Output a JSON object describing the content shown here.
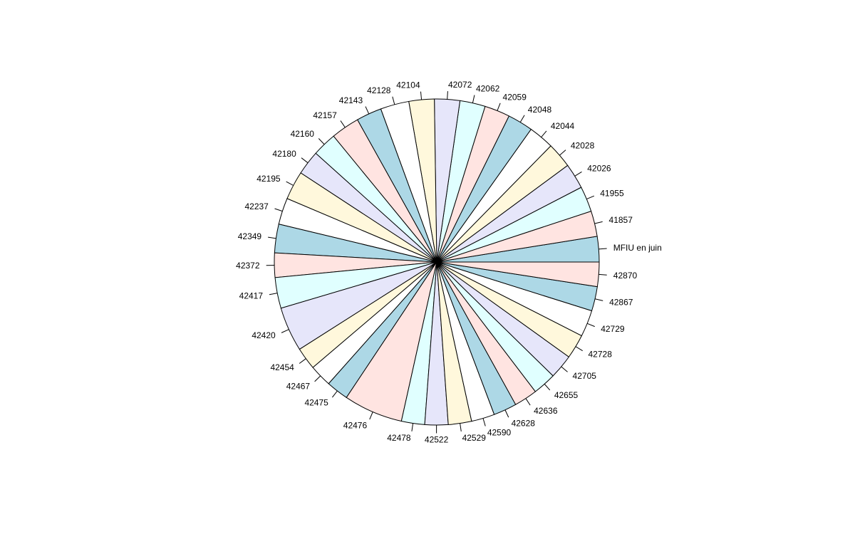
{
  "chart_data": {
    "type": "pie",
    "title": "",
    "start_angle_deg": 0,
    "direction": "counterclockwise",
    "palette": [
      "#add8e6",
      "#ffe4e1",
      "#e0ffff",
      "#e6e6fa",
      "#fff8dc",
      "#ffffff"
    ],
    "slices": [
      {
        "label": "MFIU en juin",
        "value": 2.4
      },
      {
        "label": "41857",
        "value": 2.4
      },
      {
        "label": "41955",
        "value": 2.4
      },
      {
        "label": "42026",
        "value": 2.4
      },
      {
        "label": "42028",
        "value": 2.4
      },
      {
        "label": "42044",
        "value": 2.4
      },
      {
        "label": "42048",
        "value": 2.4
      },
      {
        "label": "42059",
        "value": 2.4
      },
      {
        "label": "42062",
        "value": 2.4
      },
      {
        "label": "42072",
        "value": 2.4
      },
      {
        "label": "42104",
        "value": 2.4
      },
      {
        "label": "42128",
        "value": 2.7
      },
      {
        "label": "42143",
        "value": 2.4
      },
      {
        "label": "42157",
        "value": 2.7
      },
      {
        "label": "42160",
        "value": 2.3
      },
      {
        "label": "42180",
        "value": 2.3
      },
      {
        "label": "42195",
        "value": 2.7
      },
      {
        "label": "42237",
        "value": 2.5
      },
      {
        "label": "42349",
        "value": 2.7
      },
      {
        "label": "42372",
        "value": 2.3
      },
      {
        "label": "42417",
        "value": 2.9
      },
      {
        "label": "42420",
        "value": 4.2
      },
      {
        "label": "42454",
        "value": 2.1
      },
      {
        "label": "42467",
        "value": 2.1
      },
      {
        "label": "42475",
        "value": 2.1
      },
      {
        "label": "42476",
        "value": 5.6
      },
      {
        "label": "42478",
        "value": 2.2
      },
      {
        "label": "42522",
        "value": 2.2
      },
      {
        "label": "42529",
        "value": 2.2
      },
      {
        "label": "42590",
        "value": 2.2
      },
      {
        "label": "42628",
        "value": 2.2
      },
      {
        "label": "42636",
        "value": 2.2
      },
      {
        "label": "42655",
        "value": 2.2
      },
      {
        "label": "42705",
        "value": 2.3
      },
      {
        "label": "42728",
        "value": 2.3
      },
      {
        "label": "42729",
        "value": 2.5
      },
      {
        "label": "42867",
        "value": 2.3
      },
      {
        "label": "42870",
        "value": 2.3
      }
    ]
  }
}
